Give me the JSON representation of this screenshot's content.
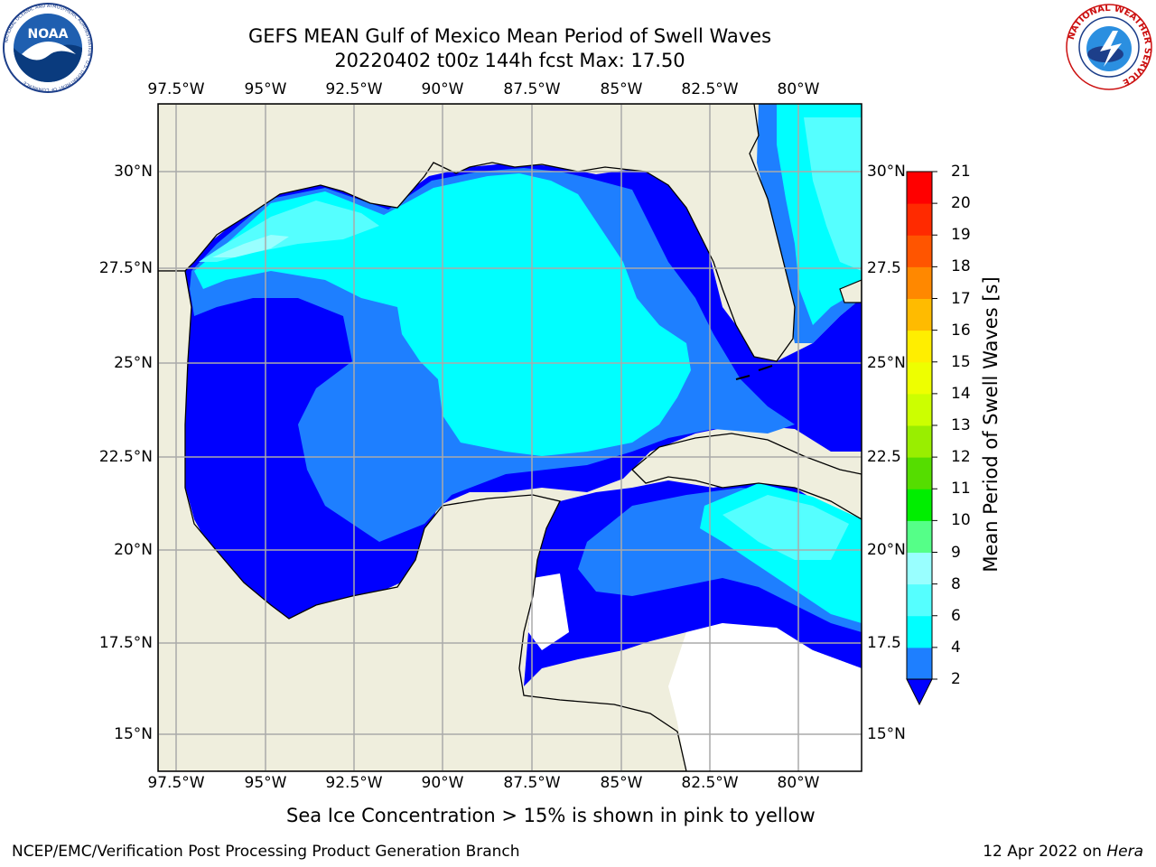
{
  "title": "GEFS MEAN Gulf of Mexico Mean Period of Swell Waves",
  "subtitle": "20220402 t00z 144h fcst   Max: 17.50",
  "logos": {
    "left": "NOAA",
    "left_ring": "NATIONAL OCEANIC AND ATMOSPHERIC ADMINISTRATION · U.S. DEPARTMENT OF COMMERCE",
    "right_ring": "NATIONAL WEATHER SERVICE"
  },
  "lon_ticks": [
    "97.5°W",
    "95°W",
    "92.5°W",
    "90°W",
    "87.5°W",
    "85°W",
    "82.5°W",
    "80°W"
  ],
  "lat_ticks_left": [
    "30°N",
    "27.5°N",
    "25°N",
    "22.5°N",
    "20°N",
    "17.5°N",
    "15°N"
  ],
  "lat_ticks_right": [
    "30°N",
    "27.5",
    "25°N",
    "22.5",
    "20°N",
    "17.5",
    "15°N"
  ],
  "colorbar": {
    "label": "Mean Period of Swell Waves [s]",
    "ticks": [
      "2",
      "4",
      "6",
      "8",
      "9",
      "10",
      "11",
      "12",
      "13",
      "14",
      "15",
      "16",
      "17",
      "18",
      "19",
      "20",
      "21"
    ],
    "colors": [
      "#0000ff",
      "#1e7fff",
      "#00ffff",
      "#55ffff",
      "#99ffff",
      "#55ff88",
      "#00ee00",
      "#55dd00",
      "#99ee00",
      "#ccff00",
      "#eeff00",
      "#ffee00",
      "#ffbb00",
      "#ff8800",
      "#ff5500",
      "#ff2a00",
      "#ff0000"
    ],
    "extend": "min"
  },
  "note": "Sea Ice Concentration > 15% is shown in pink to yellow",
  "footer_left": "NCEP/EMC/Verification Post Processing Product Generation Branch",
  "footer_date": "12 Apr 2022 on ",
  "footer_machine": "Hera",
  "colors": {
    "land": "#efeedd",
    "period_2_4": "#0000ff",
    "period_4_6": "#1e7fff",
    "period_6_8": "#00ffff",
    "period_8_9": "#55ffff",
    "period_9_10": "#99ffff",
    "no_data": "#ffffff",
    "grid": "#aaaaaa"
  }
}
